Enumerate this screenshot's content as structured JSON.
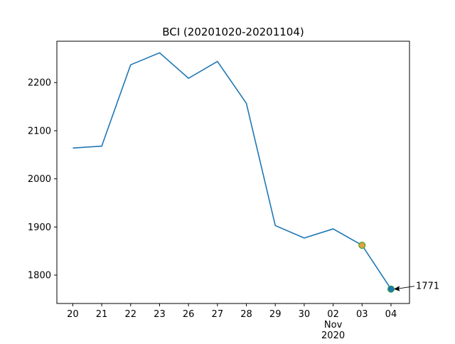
{
  "chart_data": {
    "type": "line",
    "title": "BCI (20201020-20201104)",
    "categories": [
      "20",
      "21",
      "22",
      "23",
      "26",
      "27",
      "28",
      "29",
      "30",
      "02\nNov\n2020",
      "03",
      "04"
    ],
    "series": [
      {
        "color": "#1f77b4",
        "values": [
          2064,
          2068,
          2237,
          2262,
          2209,
          2244,
          2157,
          1903,
          1877,
          1896,
          1862,
          1771
        ]
      }
    ],
    "ylim": [
      1741,
      2286
    ],
    "yticks": [
      1800,
      1900,
      2000,
      2100,
      2200
    ],
    "highlights": [
      {
        "category": "03",
        "fill": "#e0a040",
        "edge": "#2ca02c"
      },
      {
        "category": "04",
        "fill": "#1f77b4",
        "edge": "#2ca02c"
      }
    ],
    "annotate_last": true,
    "grid": false
  }
}
